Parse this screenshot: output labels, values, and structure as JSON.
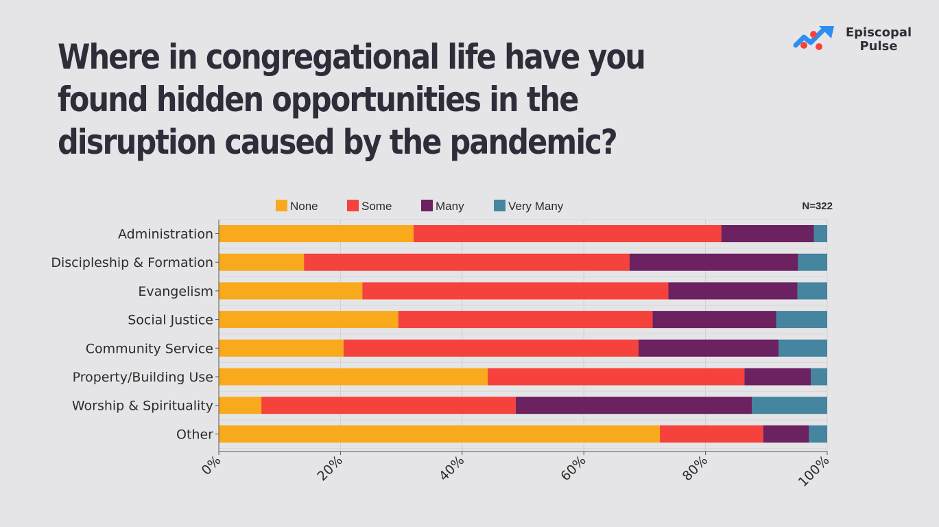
{
  "title": "Where in congregational life have you found hidden opportunities in the disruption caused by the pandemic?",
  "logo": {
    "line1": "Episcopal",
    "line2": "Pulse",
    "icon": "trend-arrow-icon"
  },
  "chart_data": {
    "type": "bar",
    "orientation": "horizontal",
    "stacked": true,
    "note": "N=322",
    "categories": [
      "Administration",
      "Discipleship & Formation",
      "Evangelism",
      "Social Justice",
      "Community Service",
      "Property/Building Use",
      "Worship & Spirituality",
      "Other"
    ],
    "series": [
      {
        "name": "None",
        "color": "#f9aa1c",
        "values": [
          32.0,
          14.0,
          23.6,
          29.5,
          20.5,
          44.2,
          7.0,
          72.5
        ]
      },
      {
        "name": "Some",
        "color": "#f5423c",
        "values": [
          50.6,
          53.5,
          50.3,
          41.8,
          48.5,
          42.2,
          41.8,
          17.0
        ]
      },
      {
        "name": "Many",
        "color": "#6c2160",
        "values": [
          15.2,
          27.7,
          21.2,
          20.3,
          23.0,
          10.9,
          38.8,
          7.5
        ]
      },
      {
        "name": "Very Many",
        "color": "#45859f",
        "values": [
          2.2,
          4.8,
          4.9,
          8.4,
          8.0,
          2.7,
          12.4,
          3.0
        ]
      }
    ],
    "xlim": [
      0,
      100
    ],
    "xticks": [
      "0%",
      "20%",
      "40%",
      "60%",
      "80%",
      "100%"
    ],
    "xtick_values": [
      0,
      20,
      40,
      60,
      80,
      100
    ],
    "grid": true,
    "legend_position": "top"
  }
}
